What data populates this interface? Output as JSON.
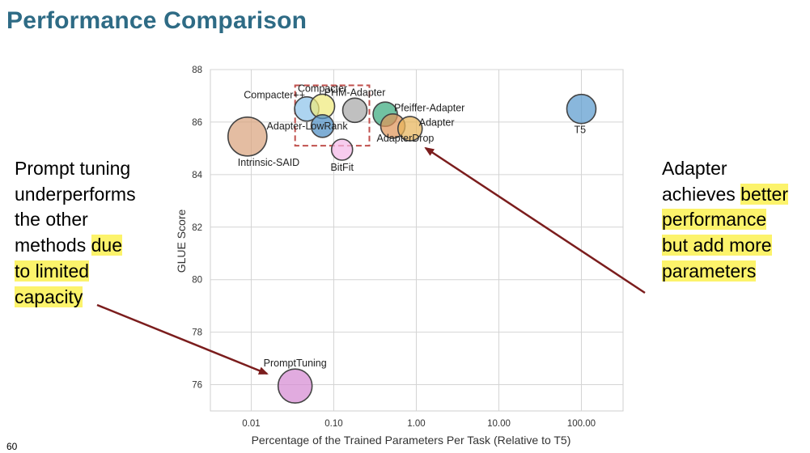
{
  "slide": {
    "title": "Performance Comparison",
    "page_number": "60"
  },
  "left_callout": {
    "lines": [
      {
        "plain": "Prompt tuning",
        "highlight": ""
      },
      {
        "plain": "underperforms",
        "highlight": ""
      },
      {
        "plain": "the other",
        "highlight": ""
      },
      {
        "plain": "methods ",
        "highlight": "due"
      },
      {
        "plain": "",
        "highlight": "to limited"
      },
      {
        "plain": "",
        "highlight": "capacity"
      }
    ]
  },
  "right_callout": {
    "lines": [
      {
        "plain": "Adapter",
        "highlight": ""
      },
      {
        "plain": "achieves ",
        "highlight": "better"
      },
      {
        "plain": "",
        "highlight": "performance"
      },
      {
        "plain": "",
        "highlight": "but add more"
      },
      {
        "plain": "",
        "highlight": "parameters"
      }
    ]
  },
  "colors": {
    "title": "#2e6b85",
    "highlight": "#fcf36b",
    "arrow": "#7b1d1d",
    "dashed_box": "#c0504d",
    "grid": "#d4d4d4"
  },
  "chart_data": {
    "type": "scatter",
    "xscale": "log",
    "xlim": [
      0.0032,
      320
    ],
    "ylim": [
      75,
      88
    ],
    "xticks": [
      0.01,
      0.1,
      1,
      10,
      100
    ],
    "xtick_labels": [
      "0.01",
      "0.10",
      "1.00",
      "10.00",
      "100.00"
    ],
    "yticks": [
      76,
      78,
      80,
      82,
      84,
      86,
      88
    ],
    "ytick_labels": [
      "76",
      "78",
      "80",
      "82",
      "84",
      "86",
      "88"
    ],
    "xlabel": "Percentage of the Trained Parameters Per Task (Relative to T5)",
    "ylabel": "GLUE Score",
    "grid": true,
    "points": [
      {
        "name": "Intrinsic-SAID",
        "x": 0.009,
        "y": 85.45,
        "size": 24,
        "color": "#d9a47e",
        "label": "Intrinsic-SAID",
        "label_pos": "below-right"
      },
      {
        "name": "PromptTuning",
        "x": 0.034,
        "y": 75.95,
        "size": 21,
        "color": "#d58ad3",
        "label": "PromptTuning",
        "label_pos": "above"
      },
      {
        "name": "Compacter++",
        "x": 0.047,
        "y": 86.5,
        "size": 15,
        "color": "#8ec4ea",
        "label": "Compacter++",
        "label_pos": "left-up"
      },
      {
        "name": "Compacter",
        "x": 0.073,
        "y": 86.6,
        "size": 15,
        "color": "#f0ea7b",
        "label": "Compacter",
        "label_pos": "above"
      },
      {
        "name": "Adapter-LowRank",
        "x": 0.073,
        "y": 85.85,
        "size": 14,
        "color": "#4e8fc5",
        "label": "Adapter-LowRank",
        "label_pos": "right"
      },
      {
        "name": "BitFit",
        "x": 0.126,
        "y": 84.95,
        "size": 13,
        "color": "#f4b8e8",
        "label": "BitFit",
        "label_pos": "below"
      },
      {
        "name": "PHM-Adapter",
        "x": 0.18,
        "y": 86.45,
        "size": 15,
        "color": "#a8a8a8",
        "label": "PHM-Adapter",
        "label_pos": "above"
      },
      {
        "name": "Pfeiffer-Adapter",
        "x": 0.42,
        "y": 86.3,
        "size": 15,
        "color": "#3aaa7e",
        "label": "Pfeiffer-Adapter",
        "label_pos": "right-up"
      },
      {
        "name": "AdapterDrop",
        "x": 0.52,
        "y": 85.85,
        "size": 15,
        "color": "#e0955a",
        "label": "AdapterDrop",
        "label_pos": "below-left"
      },
      {
        "name": "Adapter",
        "x": 0.84,
        "y": 85.75,
        "size": 15,
        "color": "#e8b45a",
        "label": "Adapter",
        "label_pos": "right-up"
      },
      {
        "name": "T5",
        "x": 100,
        "y": 86.5,
        "size": 18,
        "color": "#5b9bcf",
        "label": "T5",
        "label_pos": "below-right"
      }
    ],
    "highlight_box": {
      "x0": 0.034,
      "x1": 0.27,
      "y0": 85.1,
      "y1": 87.4
    }
  }
}
